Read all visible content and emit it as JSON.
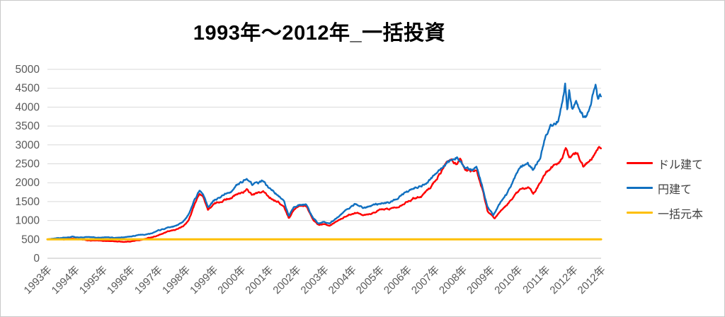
{
  "chart_data": {
    "type": "line",
    "title": "1993年～2012年_一括投資",
    "xlabel": "",
    "ylabel": "",
    "x_range": [
      1993,
      2013
    ],
    "y_range": [
      0,
      5000
    ],
    "y_ticks": [
      0,
      500,
      1000,
      1500,
      2000,
      2500,
      3000,
      3500,
      4000,
      4500,
      5000
    ],
    "x_tick_labels": [
      "1993年",
      "1994年",
      "1995年",
      "1996年",
      "1997年",
      "1998年",
      "1999年",
      "2000年",
      "2001年",
      "2002年",
      "2003年",
      "2004年",
      "2005年",
      "2006年",
      "2007年",
      "2008年",
      "2009年",
      "2010年",
      "2011年",
      "2012年",
      "2012年"
    ],
    "grid": "horizontal-only",
    "legend_position": "right",
    "axis_text_color": "#595959",
    "gridline_color": "#d9d9d9",
    "axis_line_color": "#bfbfbf",
    "series": [
      {
        "name": "ドル建て",
        "color": "#fe0000",
        "points": [
          [
            1993.0,
            500
          ],
          [
            1993.3,
            515
          ],
          [
            1993.6,
            495
          ],
          [
            1993.9,
            525
          ],
          [
            1994.2,
            495
          ],
          [
            1994.5,
            470
          ],
          [
            1994.8,
            465
          ],
          [
            1995.1,
            460
          ],
          [
            1995.4,
            450
          ],
          [
            1995.8,
            435
          ],
          [
            1996.1,
            455
          ],
          [
            1996.4,
            490
          ],
          [
            1996.7,
            545
          ],
          [
            1997.0,
            605
          ],
          [
            1997.3,
            690
          ],
          [
            1997.6,
            750
          ],
          [
            1997.9,
            840
          ],
          [
            1998.1,
            1000
          ],
          [
            1998.3,
            1400
          ],
          [
            1998.5,
            1720
          ],
          [
            1998.65,
            1600
          ],
          [
            1998.8,
            1280
          ],
          [
            1999.0,
            1420
          ],
          [
            1999.3,
            1520
          ],
          [
            1999.6,
            1600
          ],
          [
            1999.9,
            1700
          ],
          [
            2000.2,
            1800
          ],
          [
            2000.4,
            1680
          ],
          [
            2000.6,
            1720
          ],
          [
            2000.8,
            1760
          ],
          [
            2001.0,
            1620
          ],
          [
            2001.3,
            1520
          ],
          [
            2001.55,
            1350
          ],
          [
            2001.72,
            1060
          ],
          [
            2001.9,
            1280
          ],
          [
            2002.1,
            1400
          ],
          [
            2002.35,
            1380
          ],
          [
            2002.6,
            1000
          ],
          [
            2002.8,
            880
          ],
          [
            2003.0,
            920
          ],
          [
            2003.2,
            880
          ],
          [
            2003.5,
            1010
          ],
          [
            2003.8,
            1120
          ],
          [
            2004.1,
            1210
          ],
          [
            2004.4,
            1160
          ],
          [
            2004.7,
            1190
          ],
          [
            2005.0,
            1280
          ],
          [
            2005.3,
            1300
          ],
          [
            2005.6,
            1350
          ],
          [
            2005.9,
            1470
          ],
          [
            2006.2,
            1580
          ],
          [
            2006.5,
            1650
          ],
          [
            2006.8,
            1850
          ],
          [
            2007.1,
            2150
          ],
          [
            2007.35,
            2450
          ],
          [
            2007.55,
            2620
          ],
          [
            2007.75,
            2500
          ],
          [
            2007.9,
            2600
          ],
          [
            2008.1,
            2300
          ],
          [
            2008.35,
            2280
          ],
          [
            2008.5,
            2350
          ],
          [
            2008.7,
            1850
          ],
          [
            2008.9,
            1250
          ],
          [
            2009.15,
            1030
          ],
          [
            2009.4,
            1280
          ],
          [
            2009.6,
            1400
          ],
          [
            2009.85,
            1650
          ],
          [
            2010.1,
            1820
          ],
          [
            2010.35,
            1900
          ],
          [
            2010.55,
            1700
          ],
          [
            2010.8,
            1980
          ],
          [
            2011.0,
            2280
          ],
          [
            2011.2,
            2430
          ],
          [
            2011.45,
            2480
          ],
          [
            2011.6,
            2680
          ],
          [
            2011.72,
            2920
          ],
          [
            2011.85,
            2650
          ],
          [
            2012.0,
            2720
          ],
          [
            2012.15,
            2780
          ],
          [
            2012.35,
            2450
          ],
          [
            2012.5,
            2520
          ],
          [
            2012.65,
            2650
          ],
          [
            2012.8,
            2850
          ],
          [
            2012.92,
            2980
          ],
          [
            2013.0,
            2960
          ]
        ]
      },
      {
        "name": "円建て",
        "color": "#1170c0",
        "points": [
          [
            1993.0,
            500
          ],
          [
            1993.3,
            530
          ],
          [
            1993.6,
            545
          ],
          [
            1993.9,
            565
          ],
          [
            1994.2,
            550
          ],
          [
            1994.5,
            560
          ],
          [
            1994.8,
            545
          ],
          [
            1995.1,
            555
          ],
          [
            1995.4,
            540
          ],
          [
            1995.8,
            560
          ],
          [
            1996.1,
            590
          ],
          [
            1996.4,
            620
          ],
          [
            1996.7,
            650
          ],
          [
            1997.0,
            730
          ],
          [
            1997.3,
            800
          ],
          [
            1997.6,
            850
          ],
          [
            1997.9,
            950
          ],
          [
            1998.1,
            1150
          ],
          [
            1998.3,
            1500
          ],
          [
            1998.5,
            1780
          ],
          [
            1998.65,
            1650
          ],
          [
            1998.8,
            1350
          ],
          [
            1999.0,
            1500
          ],
          [
            1999.3,
            1650
          ],
          [
            1999.6,
            1780
          ],
          [
            1999.9,
            1950
          ],
          [
            2000.2,
            2120
          ],
          [
            2000.4,
            1950
          ],
          [
            2000.6,
            2000
          ],
          [
            2000.8,
            2050
          ],
          [
            2001.0,
            1850
          ],
          [
            2001.3,
            1700
          ],
          [
            2001.55,
            1500
          ],
          [
            2001.72,
            1120
          ],
          [
            2001.9,
            1350
          ],
          [
            2002.1,
            1430
          ],
          [
            2002.35,
            1420
          ],
          [
            2002.6,
            1050
          ],
          [
            2002.8,
            920
          ],
          [
            2003.0,
            960
          ],
          [
            2003.2,
            920
          ],
          [
            2003.5,
            1100
          ],
          [
            2003.8,
            1280
          ],
          [
            2004.1,
            1430
          ],
          [
            2004.4,
            1330
          ],
          [
            2004.7,
            1380
          ],
          [
            2005.0,
            1450
          ],
          [
            2005.3,
            1480
          ],
          [
            2005.6,
            1550
          ],
          [
            2005.9,
            1720
          ],
          [
            2006.2,
            1830
          ],
          [
            2006.5,
            1900
          ],
          [
            2006.8,
            2050
          ],
          [
            2007.1,
            2250
          ],
          [
            2007.35,
            2480
          ],
          [
            2007.55,
            2600
          ],
          [
            2007.75,
            2680
          ],
          [
            2007.9,
            2620
          ],
          [
            2008.1,
            2380
          ],
          [
            2008.35,
            2320
          ],
          [
            2008.5,
            2400
          ],
          [
            2008.7,
            1950
          ],
          [
            2008.9,
            1350
          ],
          [
            2009.1,
            1140
          ],
          [
            2009.35,
            1450
          ],
          [
            2009.6,
            1700
          ],
          [
            2009.85,
            2100
          ],
          [
            2010.1,
            2450
          ],
          [
            2010.35,
            2500
          ],
          [
            2010.55,
            2320
          ],
          [
            2010.8,
            2650
          ],
          [
            2011.0,
            3300
          ],
          [
            2011.2,
            3500
          ],
          [
            2011.45,
            3650
          ],
          [
            2011.6,
            4100
          ],
          [
            2011.7,
            4640
          ],
          [
            2011.78,
            3950
          ],
          [
            2011.85,
            4500
          ],
          [
            2011.95,
            3950
          ],
          [
            2012.1,
            4150
          ],
          [
            2012.25,
            3900
          ],
          [
            2012.4,
            3720
          ],
          [
            2012.55,
            3850
          ],
          [
            2012.7,
            4300
          ],
          [
            2012.8,
            4660
          ],
          [
            2012.88,
            4250
          ],
          [
            2012.95,
            4400
          ],
          [
            2013.0,
            4250
          ]
        ]
      },
      {
        "name": "一括元本",
        "color": "#febf00",
        "points": [
          [
            1993.0,
            500
          ],
          [
            2013.0,
            500
          ]
        ]
      }
    ]
  }
}
